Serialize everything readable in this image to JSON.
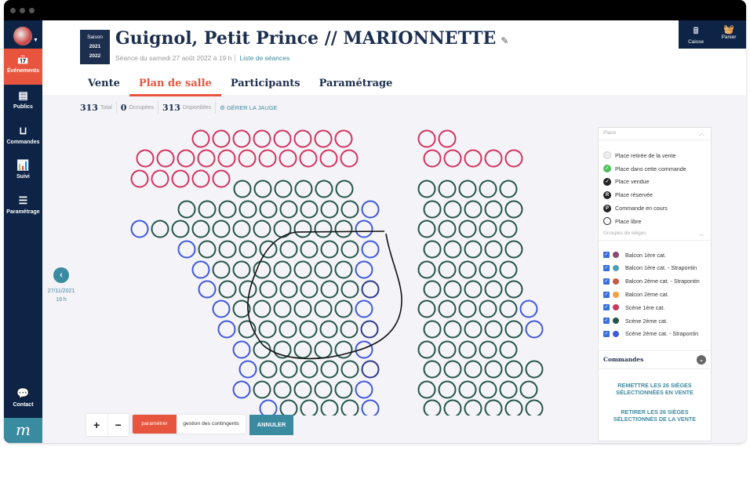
{
  "sidebar": {
    "items": [
      {
        "label": "Événements",
        "icon": "calendar-icon",
        "active": true
      },
      {
        "label": "Publics",
        "icon": "list-icon"
      },
      {
        "label": "Commandes",
        "icon": "basket-icon"
      },
      {
        "label": "Suivi",
        "icon": "bar-chart-icon"
      },
      {
        "label": "Paramétrage",
        "icon": "sliders-icon"
      }
    ],
    "contact": "Contact",
    "logo": "m"
  },
  "season": {
    "label": "Saison",
    "y1": "2021",
    "y2": "2022"
  },
  "header": {
    "title": "Guignol, Petit Prince // MARIONNETTE",
    "subtitle": "Séance du samedi 27 août 2022 à 19 h",
    "sessions_link": "Liste de séances"
  },
  "top_buttons": {
    "caisse": "Caisse",
    "panier": "Panier"
  },
  "tabs": [
    {
      "label": "Vente"
    },
    {
      "label": "Plan de salle",
      "active": true
    },
    {
      "label": "Participants"
    },
    {
      "label": "Paramétrage"
    }
  ],
  "stats": {
    "total": "313",
    "total_label": "Total",
    "occupied": "0",
    "occupied_label": "Occupées",
    "available": "313",
    "available_label": "Disponibles",
    "manage": "GÉRER LA JAUGE"
  },
  "prev_session": {
    "date": "27/11/2021",
    "time": "19 h"
  },
  "legend": {
    "place_header": "Place",
    "places": [
      {
        "label": "Place retirée de la vente",
        "color": "#eeeeee",
        "mark": ""
      },
      {
        "label": "Place dans cette commande",
        "color": "#4cc35a",
        "mark": "✓"
      },
      {
        "label": "Place vendue",
        "color": "#222222",
        "mark": "✓"
      },
      {
        "label": "Place réservée",
        "color": "#222222",
        "mark": "R"
      },
      {
        "label": "Commande en cours",
        "color": "#222222",
        "mark": "P"
      },
      {
        "label": "Place libre",
        "color": "#ffffff",
        "mark": ""
      }
    ],
    "groups_header": "Groupes de sièges",
    "groups": [
      {
        "label": "Balcon 1ère cat.",
        "color": "#8a4a6a",
        "checked": true
      },
      {
        "label": "Balcon 1ère cat. - Strapontin",
        "color": "#4fa0b5",
        "checked": true
      },
      {
        "label": "Balcon 2ème cat. - Strapontin",
        "color": "#c85a4a",
        "checked": true
      },
      {
        "label": "Balcon 2ème cat.",
        "color": "#f0a040",
        "checked": true
      },
      {
        "label": "Scène 1ère cat.",
        "color": "#d0345e",
        "checked": true
      },
      {
        "label": "Scène 2ème cat.",
        "color": "#24544a",
        "checked": true
      },
      {
        "label": "Scène 2ème cat. - Strapontin",
        "color": "#4058d8",
        "checked": true
      }
    ],
    "commandes": "Commandes",
    "action1": "REMETTRE LES 26 SIÈGES SÉLECTIONNÉES EN VENTE",
    "action2": "RETIRER LES 26 SIÈGES SÉLECTIONNÉS DE LA VENTE"
  },
  "toolbar": {
    "zoom_in": "+",
    "zoom_out": "−",
    "param": "paramétrer",
    "contingents": "gestion des contingents",
    "cancel": "ANNULER"
  },
  "colors": {
    "pink": "#d0345e",
    "green": "#24544a",
    "blue": "#4058d8",
    "selected_blue": "#2b3a8c",
    "accent": "#e8553e",
    "teal": "#3a8aa0",
    "navy": "#0e2446"
  }
}
